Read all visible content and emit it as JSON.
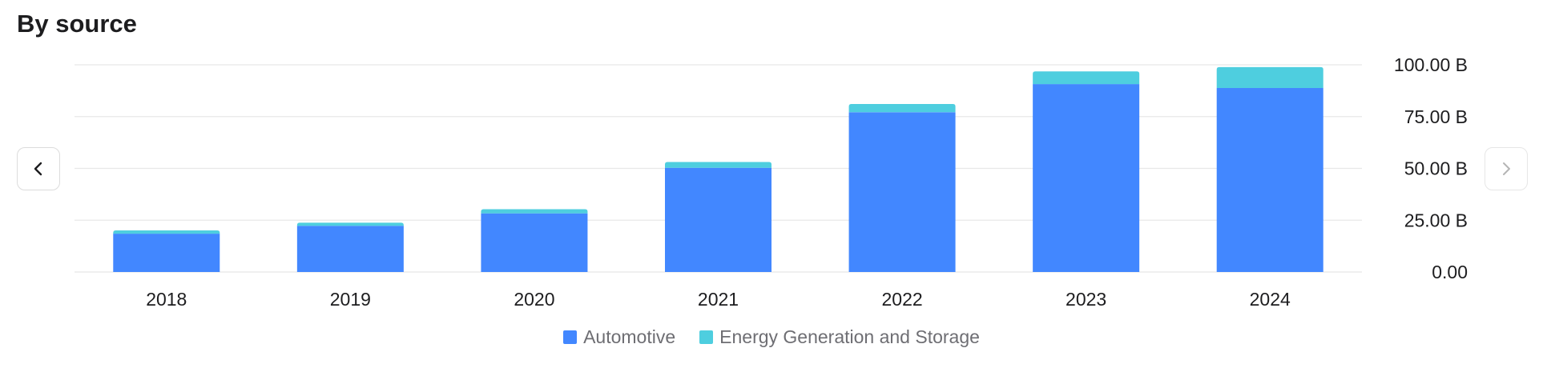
{
  "title": "By source",
  "nav": {
    "prev_icon": "chevron-left-icon",
    "next_icon": "chevron-right-icon"
  },
  "colors": {
    "automotive": "#4287ff",
    "energy": "#4ecedf",
    "grid": "#e8e8e8"
  },
  "chart_data": {
    "type": "bar",
    "stacked": true,
    "title": "By source",
    "categories": [
      "2018",
      "2019",
      "2020",
      "2021",
      "2022",
      "2023",
      "2024"
    ],
    "series": [
      {
        "name": "Automotive",
        "values": [
          18.5,
          22.3,
          28.3,
          50.3,
          77.1,
          90.7,
          88.8
        ]
      },
      {
        "name": "Energy Generation and Storage",
        "values": [
          1.6,
          1.5,
          2.0,
          2.8,
          4.0,
          6.1,
          10.1
        ]
      }
    ],
    "ylim": [
      0,
      100
    ],
    "yticks": [
      {
        "value": 100,
        "label": "100.00 B"
      },
      {
        "value": 75,
        "label": "75.00 B"
      },
      {
        "value": 50,
        "label": "50.00 B"
      },
      {
        "value": 25,
        "label": "25.00 B"
      },
      {
        "value": 0,
        "label": "0.00"
      }
    ],
    "y_axis_position": "right",
    "grid": true,
    "legend_position": "bottom-center"
  }
}
